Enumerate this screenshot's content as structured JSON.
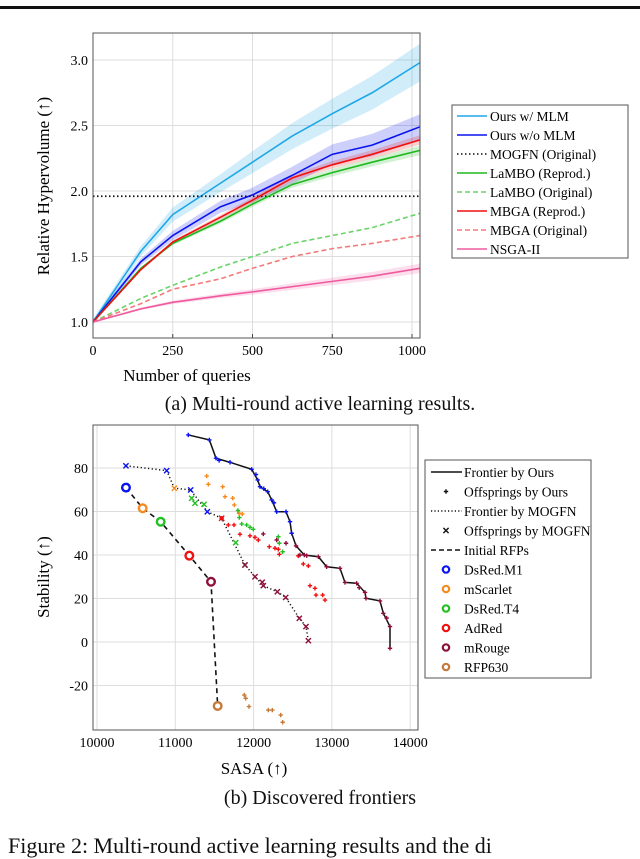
{
  "chart_data": [
    {
      "type": "line",
      "xlabel": "Number of queries",
      "ylabel": "Relative Hypervolume (↑)",
      "xlim": [
        0,
        1025
      ],
      "ylim": [
        0.88,
        3.2
      ],
      "xticks": [
        "0",
        "250",
        "500",
        "750",
        "1000"
      ],
      "yticks": [
        "1.0",
        "1.5",
        "2.0",
        "2.5",
        "3.0"
      ],
      "grid": true,
      "legend_placement": "right-outside",
      "x": [
        0,
        150,
        250,
        400,
        500,
        625,
        750,
        875,
        1025
      ],
      "series": [
        {
          "name": "Ours w/ MLM",
          "color": "#1ea7e8",
          "style": "solid",
          "band": 0.12,
          "values": [
            1.0,
            1.54,
            1.82,
            2.06,
            2.22,
            2.42,
            2.59,
            2.75,
            2.98
          ]
        },
        {
          "name": "Ours w/o MLM",
          "color": "#0a14f0",
          "style": "solid",
          "band": 0.08,
          "values": [
            1.0,
            1.46,
            1.66,
            1.88,
            1.97,
            2.12,
            2.28,
            2.35,
            2.49
          ]
        },
        {
          "name": "MOGFN (Original)",
          "color": "#111111",
          "style": "dotted",
          "band": 0,
          "values": [
            1.96,
            1.96,
            1.96,
            1.96,
            1.96,
            1.96,
            1.96,
            1.96,
            1.96
          ]
        },
        {
          "name": "LaMBO (Reprod.)",
          "color": "#1fb81f",
          "style": "solid",
          "band": 0.03,
          "values": [
            1.0,
            1.41,
            1.6,
            1.77,
            1.9,
            2.05,
            2.14,
            2.22,
            2.31
          ]
        },
        {
          "name": "LaMBO (Original)",
          "color": "#6ad46a",
          "style": "dashed",
          "band": 0,
          "values": [
            1.0,
            1.18,
            1.28,
            1.42,
            1.5,
            1.6,
            1.66,
            1.72,
            1.83
          ]
        },
        {
          "name": "MBGA (Reprod.)",
          "color": "#f01010",
          "style": "solid",
          "band": 0.03,
          "values": [
            1.0,
            1.4,
            1.61,
            1.8,
            1.93,
            2.1,
            2.2,
            2.28,
            2.39
          ]
        },
        {
          "name": "MBGA (Original)",
          "color": "#f47a7a",
          "style": "dashed",
          "band": 0,
          "values": [
            1.0,
            1.14,
            1.25,
            1.33,
            1.41,
            1.5,
            1.56,
            1.6,
            1.66
          ]
        },
        {
          "name": "NSGA-II",
          "color": "#ee5a9e",
          "style": "solid",
          "band": 0.03,
          "values": [
            1.0,
            1.1,
            1.15,
            1.2,
            1.23,
            1.27,
            1.31,
            1.35,
            1.41
          ]
        }
      ],
      "caption": "(a) Multi-round active learning results."
    },
    {
      "type": "scatter",
      "xlabel": "SASA (↑)",
      "ylabel": "Stability (↑)",
      "xlim": [
        9950,
        14100
      ],
      "ylim": [
        -40,
        95
      ],
      "xticks": [
        "10000",
        "11000",
        "12000",
        "13000",
        "14000"
      ],
      "yticks": [
        "-20",
        "0",
        "20",
        "40",
        "60",
        "80"
      ],
      "grid": true,
      "legend_placement": "right-outside",
      "legend": [
        "Frontier by Ours",
        "Offsprings by Ours",
        "Frontier by MOGFN",
        "Offsprings by MOGFN",
        "Initial RFPs",
        "DsRed.M1",
        "mScarlet",
        "DsRed.T4",
        "AdRed",
        "mRouge",
        "RFP630"
      ],
      "colors": {
        "DsRed.M1": "#0a14f0",
        "mScarlet": "#f68a1e",
        "DsRed.T4": "#22c022",
        "AdRed": "#f01010",
        "mRouge": "#8e0f3c",
        "RFP630": "#c57a3a"
      },
      "frontier_ours": [
        [
          11166,
          95.2
        ],
        [
          11435,
          92.9
        ],
        [
          11520,
          84.5
        ],
        [
          11699,
          82.6
        ],
        [
          11975,
          79.4
        ],
        [
          12052,
          74.5
        ],
        [
          12082,
          71.4
        ],
        [
          12180,
          69.1
        ],
        [
          12231,
          65.3
        ],
        [
          12295,
          59.9
        ],
        [
          12414,
          59.9
        ],
        [
          12465,
          55.3
        ],
        [
          12486,
          50.0
        ],
        [
          12542,
          44.2
        ],
        [
          12648,
          40.0
        ],
        [
          12827,
          39.2
        ],
        [
          12933,
          34.6
        ],
        [
          13103,
          33.9
        ],
        [
          13167,
          27.4
        ],
        [
          13316,
          27.0
        ],
        [
          13423,
          22.8
        ],
        [
          13435,
          20.1
        ],
        [
          13614,
          18.9
        ],
        [
          13657,
          13.2
        ],
        [
          13742,
          7.1
        ],
        [
          13742,
          -2.9
        ]
      ],
      "offsprings_ours": {
        "DsRed.M1": [
          [
            11166,
            95.2
          ],
          [
            11435,
            92.9
          ],
          [
            11520,
            84.5
          ],
          [
            11560,
            83.5
          ],
          [
            11699,
            82.6
          ],
          [
            11975,
            79.4
          ],
          [
            12030,
            77
          ],
          [
            12052,
            74.5
          ],
          [
            12082,
            71.4
          ],
          [
            12130,
            70.5
          ],
          [
            12180,
            69.1
          ],
          [
            12231,
            65.3
          ],
          [
            12260,
            64
          ],
          [
            12295,
            59.9
          ],
          [
            12414,
            59.9
          ],
          [
            12465,
            55.3
          ],
          [
            12486,
            50.0
          ]
        ],
        "mScarlet": [
          [
            11401,
            76.3
          ],
          [
            11422,
            72.5
          ],
          [
            11605,
            71.4
          ],
          [
            11635,
            66.8
          ],
          [
            11733,
            66.1
          ],
          [
            11754,
            63.0
          ],
          [
            11814,
            59.2
          ],
          [
            11856,
            58.9
          ]
        ],
        "DsRed.T4": [
          [
            11818,
            57.2
          ],
          [
            11848,
            54.3
          ],
          [
            11911,
            53.8
          ],
          [
            11954,
            52.7
          ],
          [
            11996,
            51.8
          ],
          [
            12316,
            48.4
          ],
          [
            12329,
            45.4
          ],
          [
            12371,
            41.5
          ],
          [
            11800,
            60.5
          ]
        ],
        "AdRed": [
          [
            11592,
            56.9
          ],
          [
            11677,
            53.8
          ],
          [
            11750,
            53.8
          ],
          [
            11826,
            49.5
          ],
          [
            11954,
            48.8
          ],
          [
            12018,
            48.1
          ],
          [
            12060,
            46.9
          ],
          [
            12201,
            43.8
          ],
          [
            12273,
            43.1
          ],
          [
            12316,
            42.6
          ],
          [
            12329,
            40.3
          ],
          [
            12571,
            39.6
          ],
          [
            12635,
            35.9
          ],
          [
            12699,
            35.0
          ],
          [
            12720,
            25.9
          ],
          [
            12784,
            24.7
          ],
          [
            12797,
            21.6
          ],
          [
            12882,
            21.6
          ],
          [
            12912,
            19.3
          ]
        ],
        "mRouge": [
          [
            12124,
            49.7
          ],
          [
            12295,
            46.9
          ],
          [
            12414,
            45.4
          ],
          [
            12542,
            44.2
          ],
          [
            12592,
            40.0
          ],
          [
            12648,
            40.0
          ],
          [
            12678,
            39.7
          ],
          [
            12827,
            39.2
          ],
          [
            12933,
            34.6
          ],
          [
            13103,
            33.9
          ],
          [
            13167,
            27.4
          ],
          [
            13316,
            27.0
          ],
          [
            13350,
            25
          ],
          [
            13423,
            22.8
          ],
          [
            13435,
            20.1
          ],
          [
            13614,
            18.9
          ],
          [
            13657,
            13.2
          ],
          [
            13700,
            11
          ],
          [
            13742,
            7.1
          ],
          [
            13742,
            -2.9
          ]
        ],
        "RFP630": [
          [
            11882,
            -24.4
          ],
          [
            11899,
            -25.9
          ],
          [
            11941,
            -29.7
          ],
          [
            12188,
            -31.3
          ],
          [
            12239,
            -31.3
          ],
          [
            12346,
            -33.6
          ],
          [
            12371,
            -36.9
          ]
        ]
      },
      "frontier_mogfn": [
        [
          10370,
          81.0
        ],
        [
          10890,
          78.8
        ],
        [
          10988,
          70.7
        ],
        [
          11196,
          69.9
        ],
        [
          11409,
          59.9
        ],
        [
          11592,
          56.9
        ],
        [
          11890,
          35.4
        ],
        [
          12018,
          30.0
        ],
        [
          12124,
          25.9
        ],
        [
          12303,
          23.1
        ],
        [
          12410,
          20.5
        ],
        [
          12584,
          10.9
        ],
        [
          12669,
          7.1
        ],
        [
          12699,
          0.6
        ]
      ],
      "offsprings_mogfn": {
        "DsRed.M1": [
          [
            10370,
            81.0
          ],
          [
            10890,
            78.8
          ],
          [
            11196,
            69.9
          ],
          [
            11409,
            59.9
          ]
        ],
        "mScarlet": [
          [
            10988,
            70.7
          ]
        ],
        "DsRed.T4": [
          [
            11209,
            66.1
          ],
          [
            11252,
            63.8
          ],
          [
            11367,
            63.3
          ],
          [
            11771,
            45.7
          ],
          [
            11890,
            35.4
          ]
        ],
        "AdRed": [
          [
            11592,
            56.9
          ]
        ],
        "mRouge": [
          [
            11890,
            35.4
          ],
          [
            12018,
            30.0
          ],
          [
            12124,
            25.9
          ],
          [
            12110,
            27.5
          ],
          [
            12303,
            23.1
          ],
          [
            12410,
            20.5
          ],
          [
            12584,
            10.9
          ],
          [
            12669,
            7.1
          ],
          [
            12699,
            0.6
          ]
        ]
      },
      "initial_rfps": [
        {
          "name": "DsRed.M1",
          "point": [
            10370,
            71.0
          ]
        },
        {
          "name": "mScarlet",
          "point": [
            10583,
            61.5
          ]
        },
        {
          "name": "DsRed.T4",
          "point": [
            10813,
            55.3
          ]
        },
        {
          "name": "AdRed",
          "point": [
            11179,
            39.7
          ]
        },
        {
          "name": "mRouge",
          "point": [
            11456,
            27.7
          ]
        },
        {
          "name": "RFP630",
          "point": [
            11541,
            -29.4
          ]
        }
      ],
      "caption": "(b) Discovered frontiers"
    }
  ],
  "figure_caption": "Figure 2: Multi-round active learning results and the di"
}
